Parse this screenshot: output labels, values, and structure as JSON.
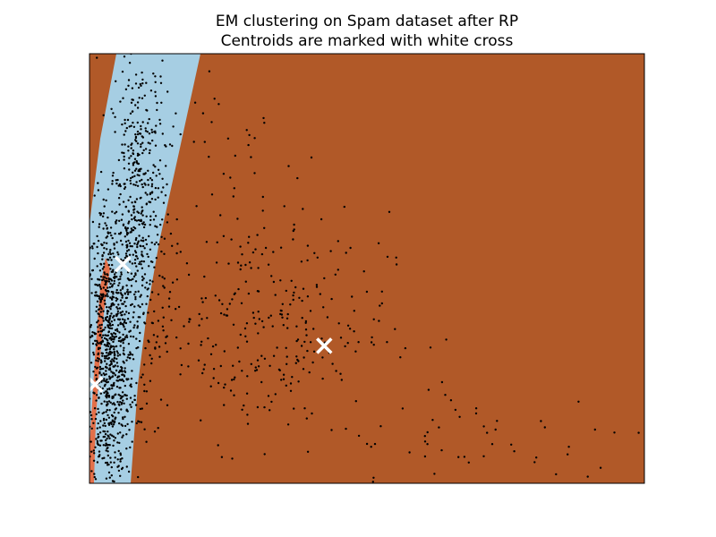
{
  "chart_data": {
    "type": "scatter",
    "title": "EM clustering on Spam dataset after RP",
    "subtitle": "Centroids are marked with white cross",
    "xlabel": "",
    "ylabel": "",
    "axes_visible": false,
    "grid": false,
    "legend": "none",
    "xlim": [
      0,
      100
    ],
    "ylim": [
      0,
      100
    ],
    "region_colors": {
      "dark_orange": "#b15928",
      "light_blue": "#a6cee3",
      "salmon": "#e3704a"
    },
    "point_color": "#000000",
    "centroid_color": "#ffffff",
    "centroids": [
      {
        "x": 6.0,
        "y": 51.0
      },
      {
        "x": 42.3,
        "y": 32.0
      },
      {
        "x": 1.0,
        "y": 23.0
      }
    ],
    "clusters": [
      {
        "cx": 3.5,
        "cy": 30.0,
        "sx": 2.2,
        "sy": 17.0,
        "n": 900
      },
      {
        "cx": 9.0,
        "cy": 62.0,
        "sx": 2.5,
        "sy": 20.0,
        "n": 500
      },
      {
        "cx": 30.0,
        "cy": 37.0,
        "sx": 12.0,
        "sy": 13.0,
        "n": 320
      },
      {
        "cx": 70.0,
        "cy": 10.0,
        "sx": 17.0,
        "sy": 7.0,
        "n": 55
      },
      {
        "cx": 25.0,
        "cy": 78.0,
        "sx": 7.0,
        "sy": 10.0,
        "n": 40
      }
    ]
  }
}
